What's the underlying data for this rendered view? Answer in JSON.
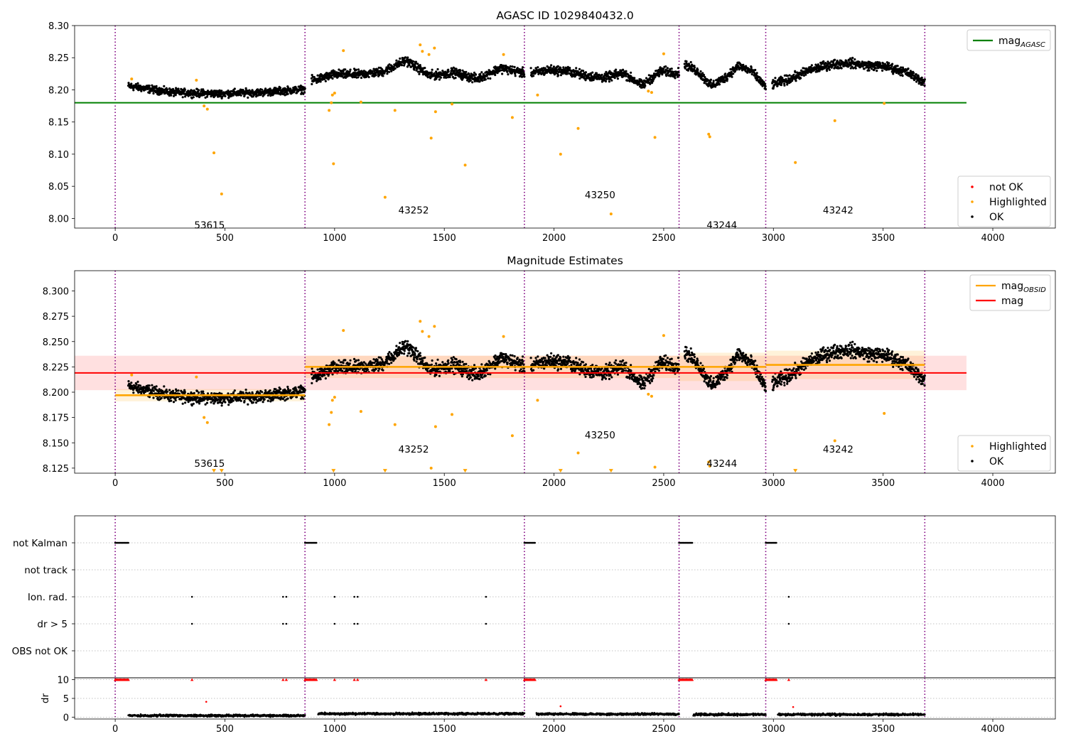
{
  "chart_data": [
    {
      "type": "scatter",
      "title": "AGASC ID 1029840432.0",
      "xlim": [
        -185,
        4285
      ],
      "ylim": [
        7.985,
        8.3
      ],
      "x_ticks": [
        "0",
        "500",
        "1000",
        "1500",
        "2000",
        "2500",
        "3000",
        "3500",
        "4000"
      ],
      "y_ticks": [
        "8.00",
        "8.05",
        "8.10",
        "8.15",
        "8.20",
        "8.25",
        "8.30"
      ],
      "legend_top": {
        "position": "top-right",
        "entries": [
          {
            "label": "mag",
            "sub": "AGASC",
            "color": "#008000"
          }
        ]
      },
      "legend_bottom": {
        "position": "lower-right",
        "entries": [
          {
            "label": "not OK",
            "color": "#ff0000"
          },
          {
            "label": "Highlighted",
            "color": "#ffa500"
          },
          {
            "label": "OK",
            "color": "#000000"
          }
        ]
      },
      "mag_agasc": 8.18,
      "mag_agasc_x": [
        -185,
        3880
      ],
      "obsid_boundaries": [
        0,
        865,
        1865,
        2570,
        2965,
        3690
      ],
      "obsid_labels": [
        {
          "text": "53615",
          "x": 430,
          "y": 7.99
        },
        {
          "text": "43252",
          "x": 1360,
          "y": 8.013
        },
        {
          "text": "43250",
          "x": 2210,
          "y": 8.037
        },
        {
          "text": "43244",
          "x": 2765,
          "y": 7.99
        },
        {
          "text": "43242",
          "x": 3295,
          "y": 8.013
        }
      ],
      "segments": [
        {
          "x": [
            60,
            865
          ],
          "trend": [
            8.206,
            8.196,
            8.194,
            8.196,
            8.201
          ],
          "noise": 0.005
        },
        {
          "x": [
            895,
            1865
          ],
          "trend": [
            8.214,
            8.224,
            8.224,
            8.228,
            8.246,
            8.222,
            8.227,
            8.217,
            8.234,
            8.226
          ],
          "noise": 0.006
        },
        {
          "x": [
            1895,
            2570
          ],
          "trend": [
            8.226,
            8.231,
            8.229,
            8.222,
            8.219,
            8.226,
            8.207,
            8.229,
            8.226
          ],
          "noise": 0.006
        },
        {
          "x": [
            2595,
            2965
          ],
          "trend": [
            8.24,
            8.228,
            8.206,
            8.219,
            8.238,
            8.228,
            8.204
          ],
          "noise": 0.006
        },
        {
          "x": [
            2995,
            3690
          ],
          "trend": [
            8.208,
            8.218,
            8.231,
            8.239,
            8.242,
            8.238,
            8.236,
            8.228,
            8.212
          ],
          "noise": 0.006
        }
      ],
      "highlighted": [
        {
          "x": 75,
          "y": 8.217
        },
        {
          "x": 370,
          "y": 8.215
        },
        {
          "x": 405,
          "y": 8.175
        },
        {
          "x": 420,
          "y": 8.17
        },
        {
          "x": 450,
          "y": 8.102
        },
        {
          "x": 485,
          "y": 8.038
        },
        {
          "x": 975,
          "y": 8.168
        },
        {
          "x": 985,
          "y": 8.18
        },
        {
          "x": 990,
          "y": 8.192
        },
        {
          "x": 995,
          "y": 8.085
        },
        {
          "x": 1000,
          "y": 8.195
        },
        {
          "x": 1040,
          "y": 8.261
        },
        {
          "x": 1120,
          "y": 8.181
        },
        {
          "x": 1230,
          "y": 8.033
        },
        {
          "x": 1275,
          "y": 8.168
        },
        {
          "x": 1390,
          "y": 8.27
        },
        {
          "x": 1400,
          "y": 8.26
        },
        {
          "x": 1430,
          "y": 8.255
        },
        {
          "x": 1440,
          "y": 8.125
        },
        {
          "x": 1455,
          "y": 8.265
        },
        {
          "x": 1460,
          "y": 8.166
        },
        {
          "x": 1535,
          "y": 8.178
        },
        {
          "x": 1595,
          "y": 8.083
        },
        {
          "x": 1770,
          "y": 8.255
        },
        {
          "x": 1810,
          "y": 8.157
        },
        {
          "x": 1925,
          "y": 8.192
        },
        {
          "x": 2030,
          "y": 8.1
        },
        {
          "x": 2110,
          "y": 8.14
        },
        {
          "x": 2260,
          "y": 8.007
        },
        {
          "x": 2430,
          "y": 8.198
        },
        {
          "x": 2445,
          "y": 8.196
        },
        {
          "x": 2460,
          "y": 8.126
        },
        {
          "x": 2500,
          "y": 8.256
        },
        {
          "x": 2705,
          "y": 8.131
        },
        {
          "x": 2710,
          "y": 8.127
        },
        {
          "x": 3100,
          "y": 8.087
        },
        {
          "x": 3280,
          "y": 8.152
        },
        {
          "x": 3505,
          "y": 8.179
        }
      ]
    },
    {
      "type": "scatter",
      "title": "Magnitude Estimates",
      "xlim": [
        -185,
        4285
      ],
      "ylim": [
        8.12,
        8.32
      ],
      "x_ticks": [
        "0",
        "500",
        "1000",
        "1500",
        "2000",
        "2500",
        "3000",
        "3500",
        "4000"
      ],
      "y_ticks": [
        "8.125",
        "8.150",
        "8.175",
        "8.200",
        "8.225",
        "8.250",
        "8.275",
        "8.300"
      ],
      "legend_top": {
        "position": "top-right",
        "entries": [
          {
            "label": "mag",
            "sub": "OBSID",
            "color": "#ffa500"
          },
          {
            "label": "mag",
            "sub": "",
            "color": "#ff0000"
          }
        ]
      },
      "legend_bottom": {
        "position": "lower-right",
        "entries": [
          {
            "label": "Highlighted",
            "color": "#ffa500"
          },
          {
            "label": "OK",
            "color": "#000000"
          }
        ]
      },
      "mag": 8.219,
      "mag_band": [
        8.202,
        8.236
      ],
      "mag_x": [
        -185,
        3880
      ],
      "mag_obsid": [
        {
          "x": [
            0,
            865
          ],
          "value": 8.197,
          "band": [
            8.191,
            8.203
          ]
        },
        {
          "x": [
            865,
            1865
          ],
          "value": 8.225,
          "band": [
            8.214,
            8.236
          ]
        },
        {
          "x": [
            1865,
            2570
          ],
          "value": 8.225,
          "band": [
            8.214,
            8.236
          ]
        },
        {
          "x": [
            2570,
            2965
          ],
          "value": 8.225,
          "band": [
            8.211,
            8.239
          ]
        },
        {
          "x": [
            2965,
            3690
          ],
          "value": 8.227,
          "band": [
            8.213,
            8.241
          ]
        }
      ],
      "obsid_boundaries": [
        0,
        865,
        1865,
        2570,
        2965,
        3690
      ],
      "obsid_labels": [
        {
          "text": "53615",
          "x": 430,
          "y": 8.13
        },
        {
          "text": "43252",
          "x": 1360,
          "y": 8.144
        },
        {
          "text": "43250",
          "x": 2210,
          "y": 8.158
        },
        {
          "text": "43244",
          "x": 2765,
          "y": 8.13
        },
        {
          "text": "43242",
          "x": 3295,
          "y": 8.144
        }
      ],
      "out_of_range_markers": [
        450,
        485,
        995,
        1230,
        1595,
        2030,
        2260,
        3100
      ],
      "out_of_range_y": 8.122
    },
    {
      "type": "scatter",
      "categories": [
        "not Kalman",
        "not track",
        "Ion. rad.",
        "dr > 5",
        "OBS not OK"
      ],
      "flags": {
        "not Kalman": [
          [
            0,
            60
          ],
          [
            865,
            920
          ],
          [
            1865,
            1915
          ],
          [
            2570,
            2630
          ],
          [
            2965,
            3015
          ]
        ],
        "Ion. rad.": [
          350,
          765,
          780,
          1000,
          1090,
          1105,
          1690,
          3070
        ],
        "dr > 5": [
          350,
          765,
          780,
          1000,
          1090,
          1105,
          1690,
          3070
        ]
      },
      "x_ticks": [
        "0",
        "500",
        "1000",
        "1500",
        "2000",
        "2500",
        "3000",
        "3500",
        "4000"
      ],
      "xlim": [
        -185,
        4285
      ],
      "obsid_boundaries": [
        0,
        865,
        1865,
        2570,
        2965,
        3690
      ]
    },
    {
      "type": "scatter",
      "ylabel": "dr",
      "ylim": [
        -0.5,
        10.5
      ],
      "y_ticks": [
        "0",
        "5",
        "10"
      ],
      "x_ticks": [
        "0",
        "500",
        "1000",
        "1500",
        "2000",
        "2500",
        "3000",
        "3500",
        "4000"
      ],
      "xlim": [
        -185,
        4285
      ],
      "obsid_boundaries": [
        0,
        865,
        1865,
        2570,
        2965,
        3690
      ],
      "clipped_at_10": [
        [
          0,
          60
        ],
        [
          865,
          920
        ],
        [
          1865,
          1915
        ],
        [
          2570,
          2630
        ],
        [
          2965,
          3015
        ]
      ],
      "clipped_single": [
        350,
        765,
        780,
        1000,
        1090,
        1105,
        1690,
        3070
      ],
      "red_points": [
        {
          "x": 415,
          "y": 4.1
        },
        {
          "x": 2030,
          "y": 2.9
        },
        {
          "x": 3090,
          "y": 2.7
        }
      ],
      "segments": [
        {
          "x": [
            60,
            865
          ],
          "baseline": 0.4
        },
        {
          "x": [
            925,
            1865
          ],
          "baseline": 0.9
        },
        {
          "x": [
            1920,
            2570
          ],
          "baseline": 0.8
        },
        {
          "x": [
            2635,
            2965
          ],
          "baseline": 0.7
        },
        {
          "x": [
            3020,
            3690
          ],
          "baseline": 0.7
        }
      ]
    }
  ]
}
